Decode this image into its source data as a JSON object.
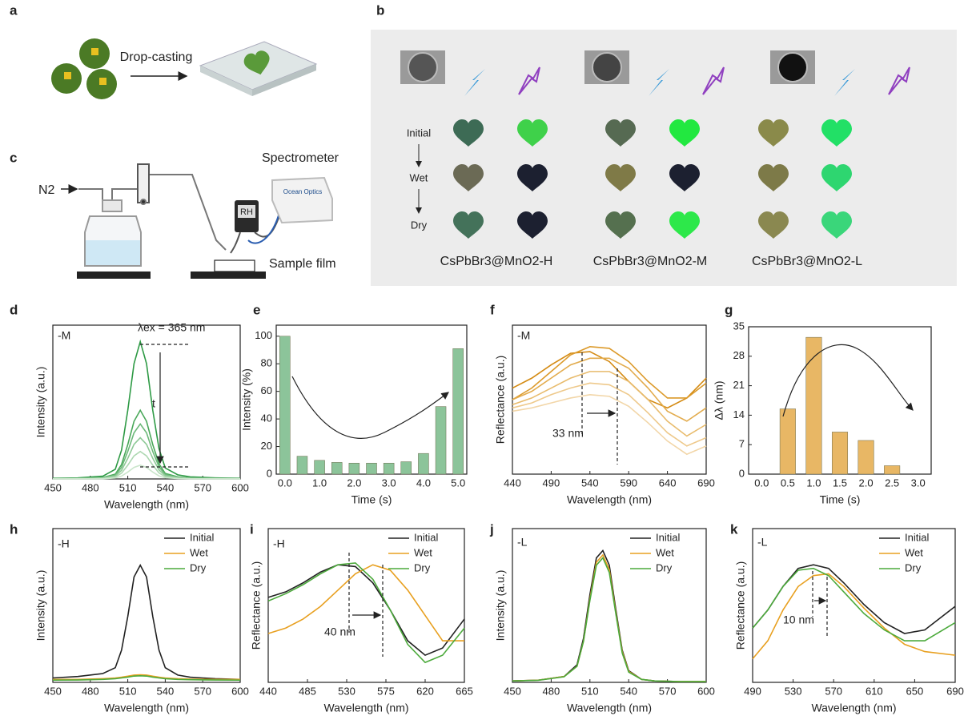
{
  "figure": {
    "panel_a": {
      "label": "a",
      "caption": "Drop-casting"
    },
    "panel_b": {
      "label": "b",
      "states": [
        "Initial",
        "Wet",
        "Dry"
      ],
      "samples": [
        "CsPbBr3@MnO2-H",
        "CsPbBr3@MnO2-M",
        "CsPbBr3@MnO2-L"
      ]
    },
    "panel_c": {
      "label": "c",
      "gas": "N2",
      "instrument": "Spectrometer",
      "brand": "Ocean Optics",
      "sensor": "RH",
      "sample": "Sample film"
    }
  },
  "chart_data": [
    {
      "type": "line",
      "label": "d",
      "annotations": [
        "-M",
        "λex = 365 nm",
        "t"
      ],
      "x_label": "Wavelength (nm)",
      "y_label": "Intensity (a.u.)",
      "x": [
        450,
        470,
        490,
        500,
        505,
        510,
        515,
        520,
        525,
        530,
        535,
        540,
        550,
        560,
        580,
        600
      ],
      "xlim": [
        450,
        600
      ],
      "xticks": [
        450,
        480,
        510,
        540,
        570,
        600
      ],
      "ylim": [
        0,
        1.12
      ],
      "series": [
        {
          "color": "#2e9a45",
          "values": [
            0.005,
            0.008,
            0.02,
            0.07,
            0.21,
            0.5,
            0.84,
            1.0,
            0.84,
            0.5,
            0.22,
            0.08,
            0.03,
            0.015,
            0.008,
            0.005
          ]
        },
        {
          "color": "#4aa85a",
          "values": [
            0.0025,
            0.004,
            0.01,
            0.035,
            0.105,
            0.25,
            0.42,
            0.5,
            0.42,
            0.25,
            0.11,
            0.04,
            0.015,
            0.0075,
            0.004,
            0.0025
          ]
        },
        {
          "color": "#6db97a",
          "values": [
            0.002,
            0.0032,
            0.008,
            0.028,
            0.084,
            0.2,
            0.336,
            0.4,
            0.336,
            0.2,
            0.088,
            0.032,
            0.012,
            0.006,
            0.0032,
            0.002
          ]
        },
        {
          "color": "#8ec996",
          "values": [
            0.0015,
            0.0024,
            0.006,
            0.021,
            0.063,
            0.15,
            0.252,
            0.3,
            0.252,
            0.15,
            0.066,
            0.024,
            0.009,
            0.0045,
            0.0024,
            0.0015
          ]
        },
        {
          "color": "#aed8b2",
          "values": [
            0.001,
            0.0016,
            0.004,
            0.014,
            0.042,
            0.1,
            0.168,
            0.2,
            0.168,
            0.1,
            0.044,
            0.016,
            0.006,
            0.003,
            0.0016,
            0.001
          ]
        },
        {
          "color": "#cbe6cc",
          "values": [
            0.0005,
            0.0008,
            0.002,
            0.007,
            0.021,
            0.05,
            0.084,
            0.1,
            0.084,
            0.05,
            0.022,
            0.008,
            0.003,
            0.0015,
            0.0008,
            0.0005
          ]
        }
      ]
    },
    {
      "type": "bar",
      "label": "e",
      "x_label": "Time (s)",
      "y_label": "Intensity (%)",
      "color": "#8cc49a",
      "categories": [
        "0.0",
        null,
        "1.0",
        null,
        "2.0",
        null,
        "3.0",
        null,
        "4.0",
        null,
        "5.0"
      ],
      "values": [
        100,
        13,
        10,
        8.5,
        8,
        8,
        8,
        9,
        15,
        49,
        91
      ],
      "ylim": [
        0,
        108
      ],
      "yticks": [
        0,
        20,
        40,
        60,
        80,
        100
      ]
    },
    {
      "type": "line",
      "label": "f",
      "annotations": [
        "-M",
        "33 nm"
      ],
      "x_label": "Wavelength (nm)",
      "y_label": "Reflectance (a.u.)",
      "x": [
        440,
        465,
        490,
        515,
        540,
        565,
        590,
        615,
        640,
        665,
        690
      ],
      "xlim": [
        440,
        690
      ],
      "xticks": [
        440,
        490,
        540,
        590,
        640,
        690
      ],
      "ylim": [
        0.1,
        1
      ],
      "series": [
        {
          "color": "#d48a12",
          "values": [
            0.62,
            0.68,
            0.76,
            0.83,
            0.84,
            0.78,
            0.66,
            0.55,
            0.5,
            0.56,
            0.68
          ]
        },
        {
          "color": "#dc9a2a",
          "values": [
            0.55,
            0.62,
            0.72,
            0.82,
            0.87,
            0.86,
            0.78,
            0.66,
            0.56,
            0.56,
            0.65
          ]
        },
        {
          "color": "#e2ab4c",
          "values": [
            0.55,
            0.6,
            0.68,
            0.76,
            0.8,
            0.8,
            0.74,
            0.62,
            0.48,
            0.42,
            0.5
          ]
        },
        {
          "color": "#e8bb6c",
          "values": [
            0.52,
            0.56,
            0.62,
            0.68,
            0.72,
            0.72,
            0.66,
            0.55,
            0.42,
            0.33,
            0.4
          ]
        },
        {
          "color": "#eec98b",
          "values": [
            0.5,
            0.53,
            0.58,
            0.62,
            0.65,
            0.64,
            0.58,
            0.47,
            0.35,
            0.27,
            0.32
          ]
        },
        {
          "color": "#f2d6a8",
          "values": [
            0.48,
            0.5,
            0.53,
            0.56,
            0.58,
            0.57,
            0.51,
            0.41,
            0.3,
            0.22,
            0.27
          ]
        }
      ]
    },
    {
      "type": "bar",
      "label": "g",
      "x_label": "Time (s)",
      "y_label": "Δλ (nm)",
      "color": "#e8b765",
      "categories": [
        "0.0",
        "0.5",
        "1.0",
        "1.5",
        "2.0",
        "2.5",
        "3.0"
      ],
      "values": [
        0,
        15.5,
        32.5,
        10,
        8,
        2,
        0
      ],
      "ylim": [
        0,
        35
      ],
      "yticks": [
        0,
        7,
        14,
        21,
        28,
        35
      ]
    },
    {
      "type": "line",
      "label": "h",
      "annotations": [
        "-H"
      ],
      "x_label": "Wavelength (nm)",
      "y_label": "Intensity (a.u.)",
      "legend": "upper right",
      "x": [
        450,
        470,
        490,
        500,
        505,
        510,
        515,
        520,
        525,
        530,
        535,
        540,
        550,
        560,
        580,
        600
      ],
      "xlim": [
        450,
        600
      ],
      "xticks": [
        450,
        480,
        510,
        540,
        570,
        600
      ],
      "ylim": [
        0,
        1.05
      ],
      "series": [
        {
          "name": "Initial",
          "color": "#222222",
          "values": [
            0.03,
            0.04,
            0.06,
            0.1,
            0.22,
            0.45,
            0.72,
            0.8,
            0.72,
            0.45,
            0.22,
            0.1,
            0.05,
            0.035,
            0.025,
            0.02
          ]
        },
        {
          "name": "Wet",
          "color": "#e8a020",
          "values": [
            0.02,
            0.02,
            0.025,
            0.03,
            0.035,
            0.042,
            0.05,
            0.052,
            0.05,
            0.042,
            0.035,
            0.03,
            0.025,
            0.022,
            0.02,
            0.02
          ]
        },
        {
          "name": "Dry",
          "color": "#4caa3c",
          "values": [
            0.015,
            0.016,
            0.02,
            0.025,
            0.03,
            0.036,
            0.043,
            0.045,
            0.043,
            0.036,
            0.03,
            0.025,
            0.02,
            0.018,
            0.016,
            0.015
          ]
        }
      ]
    },
    {
      "type": "line",
      "label": "i",
      "annotations": [
        "-H",
        "40 nm"
      ],
      "x_label": "Wavelength (nm)",
      "y_label": "Reflectance (a.u.)",
      "legend": "upper right",
      "x": [
        440,
        460,
        480,
        500,
        520,
        540,
        560,
        580,
        600,
        620,
        640,
        665
      ],
      "xlim": [
        440,
        665
      ],
      "xticks": [
        440,
        485,
        530,
        575,
        620,
        665
      ],
      "ylim": [
        0.15,
        1
      ],
      "series": [
        {
          "name": "Initial",
          "color": "#222222",
          "values": [
            0.62,
            0.65,
            0.7,
            0.76,
            0.8,
            0.79,
            0.7,
            0.55,
            0.38,
            0.3,
            0.34,
            0.5
          ]
        },
        {
          "name": "Wet",
          "color": "#e8a020",
          "values": [
            0.42,
            0.45,
            0.5,
            0.57,
            0.66,
            0.75,
            0.8,
            0.77,
            0.66,
            0.52,
            0.38,
            0.38
          ]
        },
        {
          "name": "Dry",
          "color": "#4caa3c",
          "values": [
            0.6,
            0.64,
            0.69,
            0.75,
            0.8,
            0.81,
            0.72,
            0.55,
            0.36,
            0.26,
            0.3,
            0.45
          ]
        }
      ]
    },
    {
      "type": "line",
      "label": "j",
      "annotations": [
        "-L"
      ],
      "x_label": "Wavelength (nm)",
      "y_label": "Intensity (a.u.)",
      "legend": "upper right",
      "x": [
        450,
        470,
        490,
        500,
        505,
        510,
        515,
        520,
        525,
        530,
        535,
        540,
        550,
        560,
        580,
        600
      ],
      "xlim": [
        450,
        600
      ],
      "xticks": [
        450,
        480,
        510,
        540,
        570,
        600
      ],
      "ylim": [
        0,
        1.05
      ],
      "series": [
        {
          "name": "Initial",
          "color": "#222222",
          "values": [
            0.01,
            0.015,
            0.04,
            0.12,
            0.3,
            0.6,
            0.85,
            0.9,
            0.8,
            0.5,
            0.22,
            0.08,
            0.02,
            0.01,
            0.005,
            0.005
          ]
        },
        {
          "name": "Wet",
          "color": "#e8a020",
          "values": [
            0.01,
            0.015,
            0.04,
            0.11,
            0.28,
            0.57,
            0.82,
            0.87,
            0.77,
            0.48,
            0.21,
            0.075,
            0.02,
            0.01,
            0.005,
            0.005
          ]
        },
        {
          "name": "Dry",
          "color": "#4caa3c",
          "values": [
            0.01,
            0.014,
            0.038,
            0.11,
            0.28,
            0.56,
            0.8,
            0.85,
            0.75,
            0.47,
            0.2,
            0.07,
            0.02,
            0.01,
            0.005,
            0.005
          ]
        }
      ]
    },
    {
      "type": "line",
      "label": "k",
      "annotations": [
        "-L",
        "10 nm"
      ],
      "x_label": "Wavelength (nm)",
      "y_label": "Reflectance (a.u.)",
      "legend": "upper right",
      "x": [
        490,
        505,
        520,
        535,
        550,
        565,
        580,
        600,
        620,
        640,
        660,
        690
      ],
      "xlim": [
        490,
        690
      ],
      "xticks": [
        490,
        530,
        570,
        610,
        650,
        690
      ],
      "ylim": [
        0.15,
        1
      ],
      "series": [
        {
          "name": "Initial",
          "color": "#222222",
          "values": [
            0.45,
            0.55,
            0.68,
            0.78,
            0.8,
            0.78,
            0.7,
            0.58,
            0.48,
            0.42,
            0.44,
            0.57
          ]
        },
        {
          "name": "Wet",
          "color": "#e8a020",
          "values": [
            0.28,
            0.38,
            0.55,
            0.68,
            0.74,
            0.75,
            0.68,
            0.56,
            0.45,
            0.36,
            0.32,
            0.3
          ]
        },
        {
          "name": "Dry",
          "color": "#4caa3c",
          "values": [
            0.45,
            0.55,
            0.68,
            0.77,
            0.78,
            0.74,
            0.65,
            0.53,
            0.44,
            0.38,
            0.38,
            0.48
          ]
        }
      ]
    }
  ]
}
